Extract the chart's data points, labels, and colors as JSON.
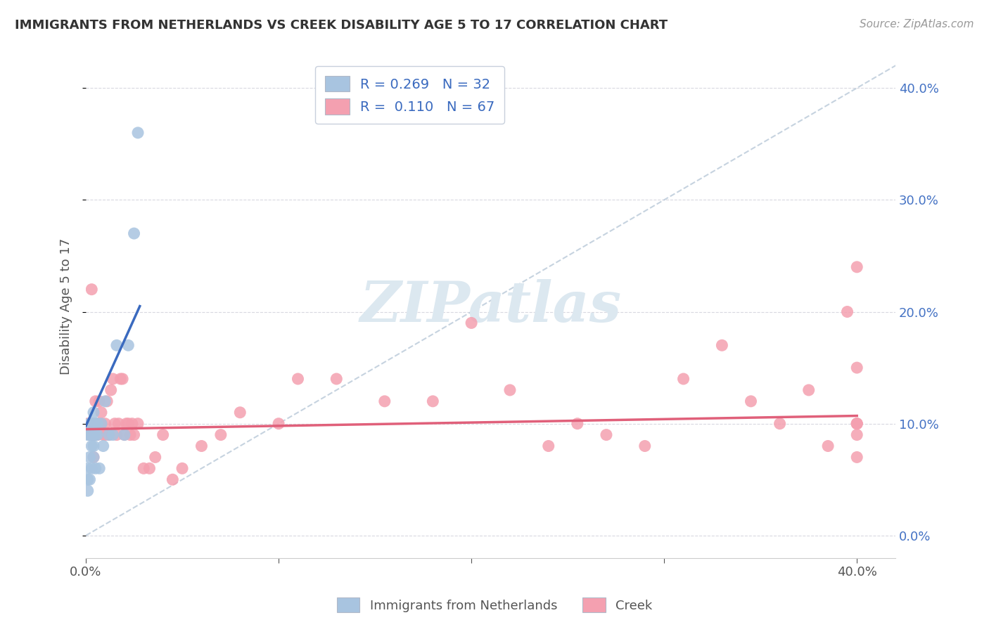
{
  "title": "IMMIGRANTS FROM NETHERLANDS VS CREEK DISABILITY AGE 5 TO 17 CORRELATION CHART",
  "source": "Source: ZipAtlas.com",
  "ylabel": "Disability Age 5 to 17",
  "xlim": [
    0.0,
    0.42
  ],
  "ylim": [
    -0.02,
    0.43
  ],
  "yticks": [
    0.0,
    0.1,
    0.2,
    0.3,
    0.4
  ],
  "xticks": [
    0.0,
    0.1,
    0.2,
    0.3,
    0.4
  ],
  "xtick_labels_show": [
    true,
    false,
    false,
    false,
    true
  ],
  "blue_color": "#a8c4e0",
  "pink_color": "#f4a0b0",
  "blue_line_color": "#3a6abf",
  "pink_line_color": "#e0607a",
  "legend_label_blue": "Immigrants from Netherlands",
  "legend_label_pink": "Creek",
  "R_blue": 0.269,
  "N_blue": 32,
  "R_pink": 0.11,
  "N_pink": 67,
  "blue_line_x0": 0.0,
  "blue_line_y0": 0.098,
  "blue_line_x1": 0.028,
  "blue_line_y1": 0.205,
  "pink_line_x0": 0.0,
  "pink_line_y0": 0.095,
  "pink_line_x1": 0.4,
  "pink_line_y1": 0.107,
  "blue_scatter_x": [
    0.001,
    0.001,
    0.001,
    0.001,
    0.002,
    0.002,
    0.002,
    0.002,
    0.003,
    0.003,
    0.003,
    0.003,
    0.004,
    0.004,
    0.004,
    0.004,
    0.005,
    0.005,
    0.005,
    0.006,
    0.006,
    0.007,
    0.008,
    0.009,
    0.01,
    0.012,
    0.014,
    0.016,
    0.02,
    0.022,
    0.025,
    0.027
  ],
  "blue_scatter_y": [
    0.04,
    0.05,
    0.06,
    0.09,
    0.05,
    0.07,
    0.09,
    0.1,
    0.06,
    0.08,
    0.09,
    0.1,
    0.07,
    0.08,
    0.09,
    0.11,
    0.06,
    0.09,
    0.1,
    0.09,
    0.1,
    0.06,
    0.1,
    0.08,
    0.12,
    0.09,
    0.09,
    0.17,
    0.09,
    0.17,
    0.27,
    0.36
  ],
  "pink_scatter_x": [
    0.001,
    0.002,
    0.003,
    0.003,
    0.004,
    0.004,
    0.005,
    0.005,
    0.006,
    0.006,
    0.007,
    0.007,
    0.008,
    0.008,
    0.009,
    0.01,
    0.01,
    0.011,
    0.012,
    0.013,
    0.014,
    0.015,
    0.016,
    0.017,
    0.018,
    0.019,
    0.02,
    0.021,
    0.022,
    0.023,
    0.024,
    0.025,
    0.027,
    0.03,
    0.033,
    0.036,
    0.04,
    0.045,
    0.05,
    0.06,
    0.07,
    0.08,
    0.1,
    0.11,
    0.13,
    0.155,
    0.18,
    0.2,
    0.22,
    0.24,
    0.255,
    0.27,
    0.29,
    0.31,
    0.33,
    0.345,
    0.36,
    0.375,
    0.385,
    0.395,
    0.4,
    0.4,
    0.4,
    0.4,
    0.4,
    0.4,
    0.4
  ],
  "pink_scatter_y": [
    0.1,
    0.09,
    0.09,
    0.22,
    0.1,
    0.07,
    0.09,
    0.12,
    0.09,
    0.1,
    0.1,
    0.12,
    0.1,
    0.11,
    0.09,
    0.09,
    0.1,
    0.12,
    0.09,
    0.13,
    0.14,
    0.1,
    0.09,
    0.1,
    0.14,
    0.14,
    0.09,
    0.1,
    0.1,
    0.09,
    0.1,
    0.09,
    0.1,
    0.06,
    0.06,
    0.07,
    0.09,
    0.05,
    0.06,
    0.08,
    0.09,
    0.11,
    0.1,
    0.14,
    0.14,
    0.12,
    0.12,
    0.19,
    0.13,
    0.08,
    0.1,
    0.09,
    0.08,
    0.14,
    0.17,
    0.12,
    0.1,
    0.13,
    0.08,
    0.2,
    0.15,
    0.1,
    0.09,
    0.07,
    0.24,
    0.1,
    0.1
  ],
  "diag_color": "#b8c8d8",
  "watermark_text": "ZIPatlas",
  "watermark_color": "#dce8f0",
  "background_color": "#ffffff",
  "grid_color": "#d8d8e0"
}
